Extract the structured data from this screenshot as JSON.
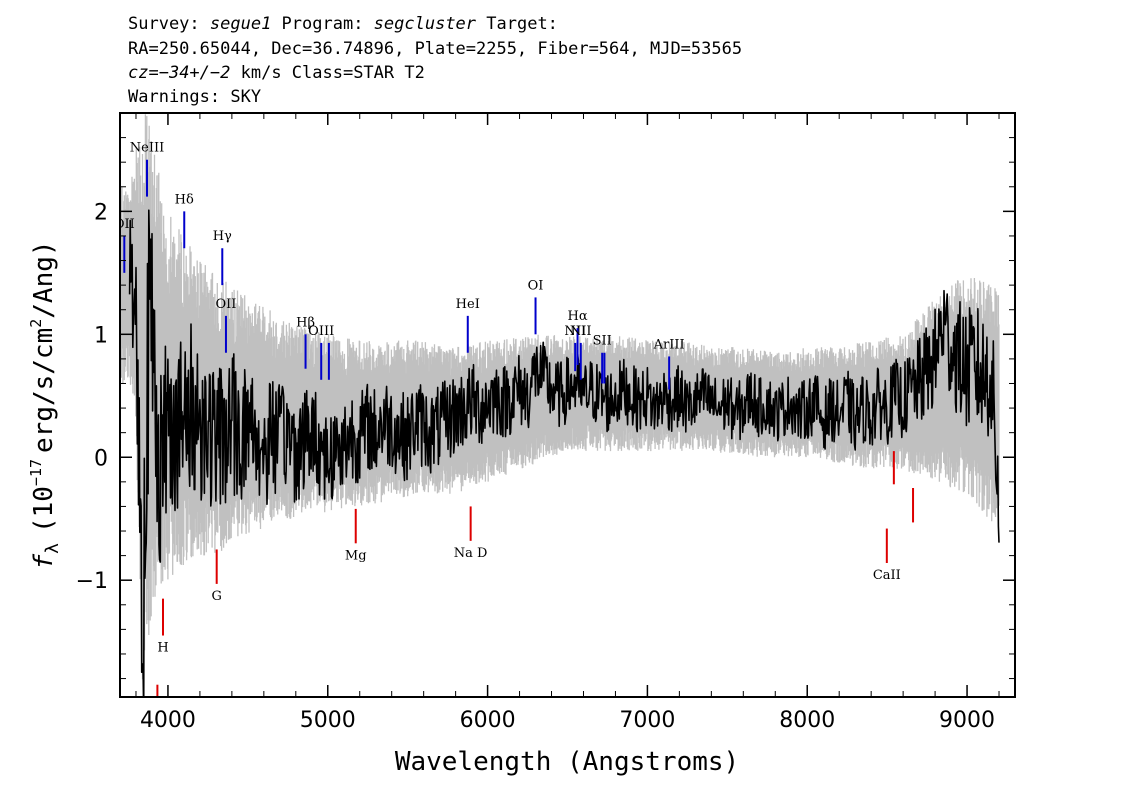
{
  "header": {
    "line1": {
      "survey_label": "Survey: ",
      "survey": "segue1",
      "program_label": " Program: ",
      "program": "segcluster",
      "target_label": " Target:"
    },
    "line2": "RA=250.65044, Dec=36.74896, Plate=2255, Fiber=564, MJD=53565",
    "line3": {
      "cz_label": "cz",
      "cz_value": "=−34+/−2",
      "cz_unit": " km/s Class=STAR T2"
    },
    "line4": "Warnings: SKY"
  },
  "chart_data": {
    "type": "line",
    "xlabel": "Wavelength (Angstroms)",
    "ylabel": "fλ (10⁻¹⁷ erg/s/cm²/Ang)",
    "ylabel_parts": {
      "f": "f",
      "lambda": "λ",
      "open": "(10",
      "exp1": "−17",
      "mid": "erg/s/cm",
      "exp2": "2",
      "close": "/Ang)"
    },
    "xlim": [
      3700,
      9300
    ],
    "ylim": [
      -1.95,
      2.8
    ],
    "x_ticks": [
      4000,
      5000,
      6000,
      7000,
      8000,
      9000
    ],
    "y_ticks": [
      -1,
      0,
      1,
      2
    ],
    "x_tick_labels": [
      "4000",
      "5000",
      "6000",
      "7000",
      "8000",
      "9000"
    ],
    "y_tick_labels": [
      "−1",
      "0",
      "1",
      "2"
    ],
    "grid": false,
    "colors": {
      "flux": "#000000",
      "error": "#c0c0c0",
      "emission": "#0000cc",
      "absorption": "#dd0000"
    },
    "series": [
      {
        "role": "flux",
        "x": [
          3760,
          3800,
          3840,
          3880,
          3920,
          3960,
          4000,
          4050,
          4100,
          4150,
          4200,
          4250,
          4300,
          4350,
          4400,
          4450,
          4500,
          4550,
          4600,
          4650,
          4700,
          4750,
          4800,
          4850,
          4900,
          4950,
          5000,
          5050,
          5100,
          5150,
          5200,
          5250,
          5300,
          5350,
          5400,
          5450,
          5500,
          5550,
          5600,
          5650,
          5700,
          5750,
          5800,
          5850,
          5900,
          5950,
          6000,
          6050,
          6100,
          6150,
          6200,
          6250,
          6300,
          6350,
          6400,
          6450,
          6500,
          6550,
          6600,
          6650,
          6700,
          6750,
          6800,
          6850,
          6900,
          6950,
          7000,
          7050,
          7100,
          7150,
          7200,
          7250,
          7300,
          7350,
          7400,
          7450,
          7500,
          7550,
          7600,
          7650,
          7700,
          7750,
          7800,
          7850,
          7900,
          7950,
          8000,
          8050,
          8100,
          8150,
          8200,
          8250,
          8300,
          8350,
          8400,
          8450,
          8500,
          8550,
          8600,
          8650,
          8700,
          8750,
          8800,
          8850,
          8900,
          8950,
          9000,
          9050,
          9100,
          9150,
          9200
        ],
        "y": [
          1.55,
          1.2,
          -1.3,
          1.1,
          0.6,
          -0.2,
          0.4,
          0.3,
          0.2,
          0.4,
          0.3,
          0.25,
          0.1,
          0.2,
          0.3,
          0.15,
          0.3,
          0.2,
          0.0,
          0.25,
          0.1,
          0.2,
          0.05,
          0.15,
          0.2,
          0.1,
          0.0,
          0.05,
          0.1,
          0.2,
          0.15,
          0.25,
          0.2,
          0.3,
          0.25,
          0.2,
          0.15,
          0.3,
          0.25,
          0.2,
          0.25,
          0.3,
          0.35,
          0.4,
          0.45,
          0.4,
          0.45,
          0.5,
          0.45,
          0.5,
          0.55,
          0.5,
          0.7,
          0.65,
          0.55,
          0.5,
          0.55,
          0.6,
          0.5,
          0.55,
          0.5,
          0.45,
          0.5,
          0.55,
          0.5,
          0.45,
          0.5,
          0.4,
          0.5,
          0.45,
          0.5,
          0.4,
          0.45,
          0.5,
          0.45,
          0.4,
          0.45,
          0.35,
          0.4,
          0.5,
          0.4,
          0.45,
          0.35,
          0.4,
          0.45,
          0.35,
          0.4,
          0.45,
          0.3,
          0.4,
          0.35,
          0.45,
          0.3,
          0.4,
          0.35,
          0.45,
          0.4,
          0.5,
          0.45,
          0.55,
          0.6,
          0.7,
          0.8,
          1.1,
          0.9,
          0.8,
          0.7,
          0.75,
          0.65,
          0.7,
          -0.35
        ]
      },
      {
        "role": "error",
        "x": [
          3760,
          3800,
          3840,
          3880,
          3920,
          3960,
          4000,
          4100,
          4200,
          4300,
          4400,
          4500,
          4600,
          4700,
          4800,
          4900,
          5000,
          5200,
          5400,
          5600,
          5800,
          6000,
          6200,
          6400,
          6600,
          6800,
          7000,
          7200,
          7400,
          7600,
          7800,
          8000,
          8200,
          8400,
          8600,
          8800,
          9000,
          9200
        ],
        "lower": [
          0.6,
          0.2,
          -1.95,
          -1.5,
          -1.2,
          -1.1,
          -1.0,
          -0.9,
          -0.8,
          -0.8,
          -0.7,
          -0.65,
          -0.6,
          -0.55,
          -0.5,
          -0.45,
          -0.45,
          -0.4,
          -0.35,
          -0.3,
          -0.3,
          -0.2,
          -0.1,
          0.0,
          0.05,
          0.05,
          0.05,
          0.05,
          0.05,
          0.0,
          0.0,
          0.0,
          -0.05,
          -0.1,
          -0.1,
          -0.2,
          -0.3,
          -0.6
        ],
        "upper": [
          2.2,
          2.6,
          2.8,
          2.8,
          2.5,
          2.2,
          2.0,
          1.8,
          1.6,
          1.5,
          1.4,
          1.3,
          1.25,
          1.15,
          1.1,
          1.05,
          1.0,
          0.95,
          0.95,
          0.95,
          0.9,
          0.95,
          1.0,
          1.0,
          1.0,
          1.0,
          0.95,
          0.95,
          0.9,
          0.9,
          0.85,
          0.9,
          0.9,
          0.95,
          1.0,
          1.3,
          1.5,
          1.4
        ]
      }
    ],
    "annotations": [
      {
        "label": "OII",
        "x": 3727,
        "y0": 1.5,
        "y1": 1.8,
        "kind": "emission"
      },
      {
        "label": "NeIII",
        "x": 3869,
        "y0": 2.12,
        "y1": 2.42,
        "kind": "emission"
      },
      {
        "label": "Hδ",
        "x": 4102,
        "y0": 1.7,
        "y1": 2.0,
        "kind": "emission"
      },
      {
        "label": "Hγ",
        "x": 4340,
        "y0": 1.4,
        "y1": 1.7,
        "kind": "emission"
      },
      {
        "label": "OII",
        "x": 4363,
        "y0": 0.85,
        "y1": 1.15,
        "kind": "emission"
      },
      {
        "label": "Hβ",
        "x": 4861,
        "y0": 0.72,
        "y1": 1.0,
        "kind": "emission"
      },
      {
        "label": "OIII",
        "x": 4959,
        "y0": 0.63,
        "y1": 0.93,
        "kind": "emission"
      },
      {
        "label": "",
        "x": 5007,
        "y0": 0.63,
        "y1": 0.93,
        "kind": "emission"
      },
      {
        "label": "HeI",
        "x": 5876,
        "y0": 0.85,
        "y1": 1.15,
        "kind": "emission"
      },
      {
        "label": "OI",
        "x": 6300,
        "y0": 1.0,
        "y1": 1.3,
        "kind": "emission"
      },
      {
        "label": "NII",
        "x": 6548,
        "y0": 0.7,
        "y1": 0.93,
        "kind": "emission"
      },
      {
        "label": "Hα",
        "x": 6563,
        "y0": 0.75,
        "y1": 1.05,
        "kind": "emission"
      },
      {
        "label": "NII",
        "x": 6583,
        "y0": 0.63,
        "y1": 0.93,
        "kind": "emission"
      },
      {
        "label": "SII",
        "x": 6717,
        "y0": 0.6,
        "y1": 0.85,
        "kind": "emission"
      },
      {
        "label": "",
        "x": 6731,
        "y0": 0.6,
        "y1": 0.85,
        "kind": "emission"
      },
      {
        "label": "ArIII",
        "x": 7136,
        "y0": 0.55,
        "y1": 0.82,
        "kind": "emission"
      },
      {
        "label": "H",
        "x": 3969,
        "y0": -1.45,
        "y1": -1.15,
        "kind": "absorption"
      },
      {
        "label": "",
        "x": 3934,
        "y0": -1.95,
        "y1": -1.85,
        "kind": "absorption"
      },
      {
        "label": "G",
        "x": 4305,
        "y0": -1.03,
        "y1": -0.75,
        "kind": "absorption"
      },
      {
        "label": "Mg",
        "x": 5175,
        "y0": -0.7,
        "y1": -0.42,
        "kind": "absorption"
      },
      {
        "label": "Na D",
        "x": 5894,
        "y0": -0.68,
        "y1": -0.4,
        "kind": "absorption"
      },
      {
        "label": "CaII",
        "x": 8498,
        "y0": -0.86,
        "y1": -0.58,
        "kind": "absorption"
      },
      {
        "label": "",
        "x": 8542,
        "y0": -0.22,
        "y1": 0.05,
        "kind": "absorption"
      },
      {
        "label": "",
        "x": 8662,
        "y0": -0.53,
        "y1": -0.25,
        "kind": "absorption"
      }
    ]
  }
}
